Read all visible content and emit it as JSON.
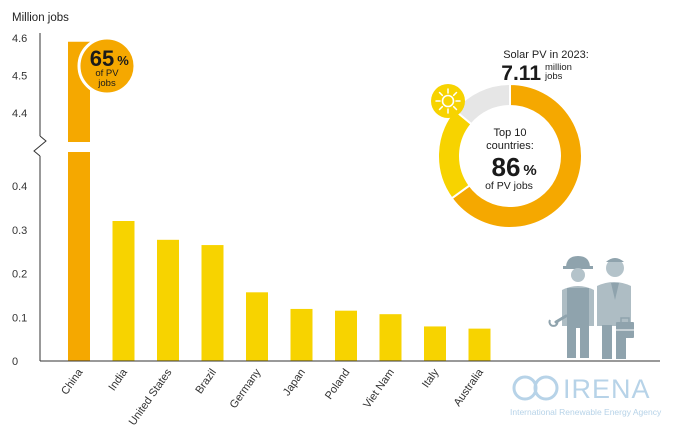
{
  "chart_data": {
    "type": "bar",
    "ylabel": "Million jobs",
    "categories": [
      "China",
      "India",
      "United States",
      "Brazil",
      "Germany",
      "Japan",
      "Poland",
      "Viet Nam",
      "Italy",
      "Australia"
    ],
    "values": [
      4.59,
      0.32,
      0.277,
      0.265,
      0.157,
      0.119,
      0.115,
      0.107,
      0.079,
      0.074
    ],
    "y_ticks_lower": [
      "0",
      "0.1",
      "0.2",
      "0.3",
      "0.4"
    ],
    "y_ticks_upper": [
      "4.4",
      "4.5",
      "4.6"
    ],
    "axis_break": true,
    "ylim_lower": [
      0,
      0.45
    ],
    "ylim_upper": [
      4.35,
      4.6
    ],
    "grid": false,
    "colors": {
      "china": "#f5a800",
      "others": "#f7d300",
      "axis": "#333333",
      "badge": "#f5a800"
    },
    "china_badge": {
      "value": "65",
      "unit": "%",
      "line1": "of PV",
      "line2": "jobs"
    }
  },
  "donut": {
    "header": "Solar PV in 2023:",
    "total_value": "7.11",
    "total_unit_line1": "million",
    "total_unit_line2": "jobs",
    "center_line1": "Top 10",
    "center_line2": "countries:",
    "center_value": "86",
    "center_unit": "%",
    "center_line3": "of PV jobs",
    "segments": [
      {
        "share": 0.65,
        "color": "#f5a800"
      },
      {
        "share": 0.21,
        "color": "#f7d300"
      },
      {
        "share": 0.14,
        "color": "#e6e6e6"
      }
    ],
    "sun_icon": "sun-icon"
  },
  "workers_icon": "workers-icon",
  "logo": {
    "name": "IRENA",
    "subtitle": "International Renewable Energy Agency"
  }
}
